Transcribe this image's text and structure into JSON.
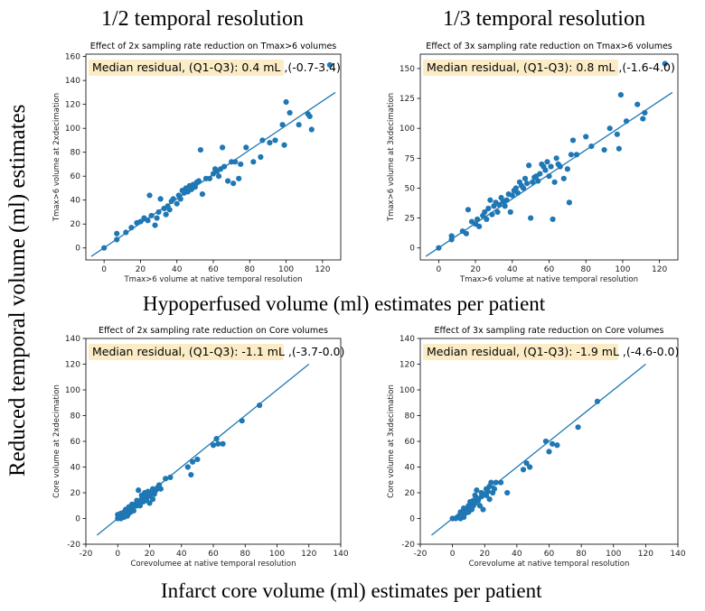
{
  "figure": {
    "col_titles": [
      "1/2 temporal resolution",
      "1/3 temporal resolution"
    ],
    "y_label": "Reduced temporal volume (ml) estimates",
    "row1_label": "Hypoperfused volume (ml) estimates per patient",
    "row2_label": "Infarct core volume (ml) estimates per patient",
    "colors": {
      "marker": "#1f77b4",
      "line": "#1f77b4",
      "residual_box": "#fcecc6"
    }
  },
  "chart_data": [
    {
      "type": "scatter",
      "title": "Effect of 2x sampling rate reduction on Tmax>6 volumes",
      "xlabel": "Tmax>6 volume at native temporal resolution",
      "ylabel": "Tmax>6 volume at 2xdecimation",
      "annotation": "Median residual, (Q1-Q3): 0.4 mL ,(-0.7-3.4)",
      "xlim": [
        -10,
        130
      ],
      "ylim": [
        -10,
        162
      ],
      "xticks": [
        0,
        20,
        40,
        60,
        80,
        100,
        120
      ],
      "yticks": [
        0,
        20,
        40,
        60,
        80,
        100,
        120,
        140,
        160
      ],
      "fit_line": {
        "x": [
          -7,
          127
        ],
        "y": [
          -7,
          130
        ]
      },
      "points": [
        [
          0,
          0
        ],
        [
          7,
          7
        ],
        [
          7,
          12
        ],
        [
          12,
          13
        ],
        [
          15,
          17
        ],
        [
          18,
          21
        ],
        [
          20,
          22
        ],
        [
          22,
          25
        ],
        [
          24,
          23
        ],
        [
          26,
          27
        ],
        [
          25,
          44
        ],
        [
          28,
          19
        ],
        [
          29,
          25
        ],
        [
          30,
          30
        ],
        [
          31,
          41
        ],
        [
          33,
          33
        ],
        [
          34,
          28
        ],
        [
          35,
          35
        ],
        [
          36,
          32
        ],
        [
          37,
          39
        ],
        [
          38,
          41
        ],
        [
          40,
          37
        ],
        [
          41,
          44
        ],
        [
          42,
          41
        ],
        [
          43,
          48
        ],
        [
          44,
          46
        ],
        [
          45,
          50
        ],
        [
          46,
          47
        ],
        [
          47,
          52
        ],
        [
          48,
          49
        ],
        [
          49,
          53
        ],
        [
          50,
          51
        ],
        [
          51,
          55
        ],
        [
          52,
          56
        ],
        [
          53,
          82
        ],
        [
          54,
          45
        ],
        [
          56,
          58
        ],
        [
          58,
          58
        ],
        [
          60,
          62
        ],
        [
          61,
          66
        ],
        [
          62,
          64
        ],
        [
          63,
          60
        ],
        [
          64,
          66
        ],
        [
          65,
          84
        ],
        [
          66,
          68
        ],
        [
          68,
          56
        ],
        [
          70,
          72
        ],
        [
          71,
          54
        ],
        [
          72,
          72
        ],
        [
          74,
          58
        ],
        [
          75,
          70
        ],
        [
          78,
          84
        ],
        [
          82,
          72
        ],
        [
          86,
          76
        ],
        [
          87,
          90
        ],
        [
          91,
          88
        ],
        [
          94,
          90
        ],
        [
          98,
          103
        ],
        [
          99,
          86
        ],
        [
          100,
          122
        ],
        [
          102,
          113
        ],
        [
          107,
          103
        ],
        [
          112,
          112
        ],
        [
          113,
          110
        ],
        [
          114,
          99
        ],
        [
          124,
          153
        ]
      ]
    },
    {
      "type": "scatter",
      "title": "Effect of 3x sampling rate reduction on Tmax>6 volumes",
      "xlabel": "Tmax>6 volume at native temporal resolution",
      "ylabel": "Tmax>6 volume at 3xdecimation",
      "annotation": "Median residual, (Q1-Q3): 0.8 mL ,(-1.6-4.0)",
      "xlim": [
        -10,
        130
      ],
      "ylim": [
        -10,
        162
      ],
      "xticks": [
        0,
        20,
        40,
        60,
        80,
        100,
        120
      ],
      "yticks": [
        0,
        25,
        50,
        75,
        100,
        125,
        150
      ],
      "fit_line": {
        "x": [
          -7,
          127
        ],
        "y": [
          -7,
          130
        ]
      },
      "points": [
        [
          0,
          0
        ],
        [
          7,
          7
        ],
        [
          7,
          10
        ],
        [
          13,
          14
        ],
        [
          15,
          12
        ],
        [
          16,
          32
        ],
        [
          18,
          22
        ],
        [
          20,
          20
        ],
        [
          21,
          24
        ],
        [
          22,
          18
        ],
        [
          24,
          27
        ],
        [
          25,
          30
        ],
        [
          26,
          24
        ],
        [
          27,
          33
        ],
        [
          28,
          40
        ],
        [
          29,
          28
        ],
        [
          30,
          35
        ],
        [
          31,
          38
        ],
        [
          32,
          30
        ],
        [
          33,
          36
        ],
        [
          34,
          42
        ],
        [
          35,
          39
        ],
        [
          36,
          35
        ],
        [
          37,
          40
        ],
        [
          38,
          45
        ],
        [
          39,
          30
        ],
        [
          40,
          44
        ],
        [
          41,
          48
        ],
        [
          42,
          50
        ],
        [
          43,
          46
        ],
        [
          44,
          55
        ],
        [
          45,
          52
        ],
        [
          46,
          50
        ],
        [
          47,
          58
        ],
        [
          48,
          54
        ],
        [
          49,
          69
        ],
        [
          50,
          25
        ],
        [
          51,
          55
        ],
        [
          52,
          59
        ],
        [
          53,
          60
        ],
        [
          54,
          56
        ],
        [
          55,
          62
        ],
        [
          56,
          70
        ],
        [
          57,
          68
        ],
        [
          58,
          65
        ],
        [
          59,
          72
        ],
        [
          60,
          60
        ],
        [
          61,
          68
        ],
        [
          62,
          24
        ],
        [
          63,
          55
        ],
        [
          64,
          75
        ],
        [
          65,
          70
        ],
        [
          66,
          68
        ],
        [
          68,
          58
        ],
        [
          70,
          66
        ],
        [
          71,
          38
        ],
        [
          72,
          78
        ],
        [
          73,
          90
        ],
        [
          75,
          78
        ],
        [
          80,
          93
        ],
        [
          83,
          85
        ],
        [
          90,
          82
        ],
        [
          93,
          100
        ],
        [
          97,
          95
        ],
        [
          98,
          83
        ],
        [
          99,
          128
        ],
        [
          102,
          106
        ],
        [
          108,
          120
        ],
        [
          111,
          108
        ],
        [
          112,
          113
        ],
        [
          123,
          154
        ]
      ]
    },
    {
      "type": "scatter",
      "title": "Effect of 2x sampling rate reduction on Core volumes",
      "xlabel": "Corevolumee at native temporal resolution",
      "ylabel": "Core volume at 2xdecimation",
      "annotation": "Median residual, (Q1-Q3): -1.1 mL ,(-3.7-0.0)",
      "xlim": [
        -20,
        140
      ],
      "ylim": [
        -20,
        140
      ],
      "xticks": [
        -20,
        0,
        20,
        40,
        60,
        80,
        100,
        120,
        140
      ],
      "yticks": [
        -20,
        0,
        20,
        40,
        60,
        80,
        100,
        120,
        140
      ],
      "fit_line": {
        "x": [
          -13,
          120
        ],
        "y": [
          -13,
          120
        ]
      },
      "points": [
        [
          0,
          0
        ],
        [
          0,
          3
        ],
        [
          1,
          1
        ],
        [
          2,
          0
        ],
        [
          2,
          4
        ],
        [
          3,
          2
        ],
        [
          4,
          1
        ],
        [
          4,
          5
        ],
        [
          5,
          3
        ],
        [
          5,
          7
        ],
        [
          6,
          2
        ],
        [
          6,
          6
        ],
        [
          7,
          4
        ],
        [
          7,
          9
        ],
        [
          8,
          8
        ],
        [
          8,
          5
        ],
        [
          9,
          7
        ],
        [
          9,
          11
        ],
        [
          10,
          9
        ],
        [
          10,
          6
        ],
        [
          11,
          11
        ],
        [
          12,
          10
        ],
        [
          12,
          14
        ],
        [
          13,
          12
        ],
        [
          13,
          22
        ],
        [
          14,
          10
        ],
        [
          15,
          15
        ],
        [
          15,
          18
        ],
        [
          16,
          13
        ],
        [
          17,
          16
        ],
        [
          17,
          20
        ],
        [
          18,
          14
        ],
        [
          19,
          17
        ],
        [
          19,
          21
        ],
        [
          20,
          18
        ],
        [
          20,
          12
        ],
        [
          21,
          20
        ],
        [
          22,
          23
        ],
        [
          22,
          15
        ],
        [
          23,
          19
        ],
        [
          24,
          22
        ],
        [
          25,
          24
        ],
        [
          26,
          26
        ],
        [
          27,
          23
        ],
        [
          30,
          31
        ],
        [
          33,
          32
        ],
        [
          44,
          40
        ],
        [
          46,
          34
        ],
        [
          47,
          44
        ],
        [
          50,
          46
        ],
        [
          60,
          57
        ],
        [
          62,
          62
        ],
        [
          63,
          58
        ],
        [
          66,
          58
        ],
        [
          78,
          76
        ],
        [
          89,
          88
        ]
      ]
    },
    {
      "type": "scatter",
      "title": "Effect of 3x sampling rate reduction on Core volumes",
      "xlabel": "Corevolume at native temporal resolution",
      "ylabel": "Core volume at 3xdecimation",
      "annotation": "Median residual, (Q1-Q3): -1.9 mL ,(-4.6-0.0)",
      "xlim": [
        -20,
        140
      ],
      "ylim": [
        -20,
        140
      ],
      "xticks": [
        -20,
        0,
        20,
        40,
        60,
        80,
        100,
        120,
        140
      ],
      "yticks": [
        -20,
        0,
        20,
        40,
        60,
        80,
        100,
        120,
        140
      ],
      "fit_line": {
        "x": [
          -13,
          120
        ],
        "y": [
          -13,
          120
        ]
      },
      "points": [
        [
          0,
          0
        ],
        [
          2,
          0
        ],
        [
          3,
          1
        ],
        [
          4,
          2
        ],
        [
          5,
          0
        ],
        [
          5,
          5
        ],
        [
          6,
          3
        ],
        [
          7,
          8
        ],
        [
          7,
          1
        ],
        [
          8,
          6
        ],
        [
          8,
          4
        ],
        [
          9,
          8
        ],
        [
          10,
          10
        ],
        [
          10,
          5
        ],
        [
          11,
          9
        ],
        [
          11,
          13
        ],
        [
          12,
          12
        ],
        [
          12,
          7
        ],
        [
          13,
          14
        ],
        [
          13,
          10
        ],
        [
          14,
          12
        ],
        [
          14,
          18
        ],
        [
          15,
          16
        ],
        [
          15,
          22
        ],
        [
          16,
          14
        ],
        [
          17,
          10
        ],
        [
          18,
          17
        ],
        [
          18,
          20
        ],
        [
          19,
          7
        ],
        [
          20,
          19
        ],
        [
          21,
          18
        ],
        [
          21,
          23
        ],
        [
          22,
          21
        ],
        [
          23,
          25
        ],
        [
          23,
          15
        ],
        [
          24,
          28
        ],
        [
          25,
          20
        ],
        [
          26,
          23
        ],
        [
          27,
          28
        ],
        [
          30,
          28
        ],
        [
          34,
          20
        ],
        [
          44,
          38
        ],
        [
          46,
          43
        ],
        [
          48,
          40
        ],
        [
          58,
          60
        ],
        [
          60,
          52
        ],
        [
          62,
          58
        ],
        [
          65,
          57
        ],
        [
          78,
          71
        ],
        [
          90,
          91
        ]
      ]
    }
  ]
}
